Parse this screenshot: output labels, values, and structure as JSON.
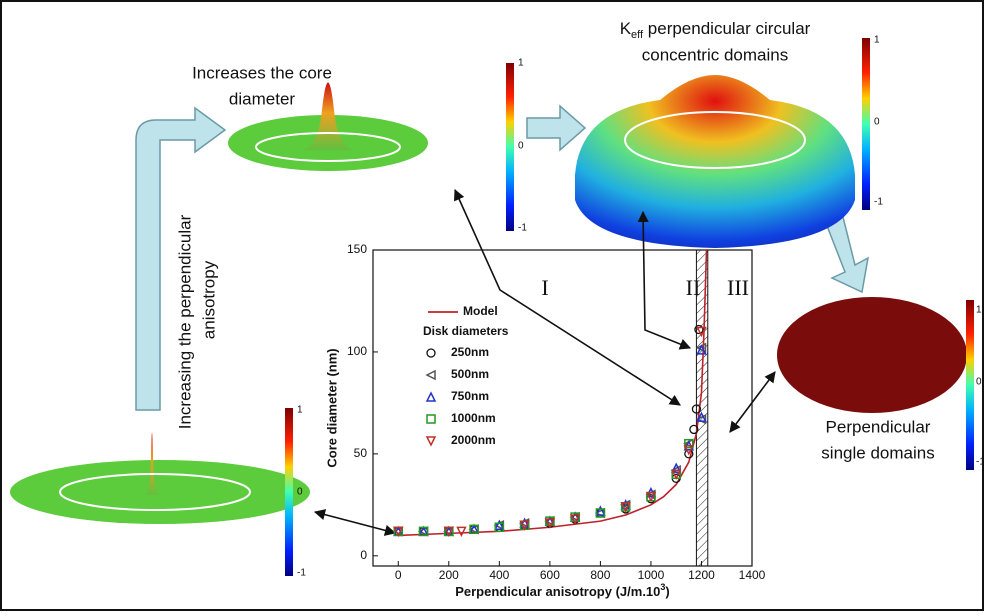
{
  "chart_data": {
    "type": "scatter",
    "xlabel": "Perpendicular anisotropy (J/m.10",
    "xlabel_sup": "3",
    "xlabel_end": ")",
    "ylabel": "Core diameter (nm)",
    "xlim": [
      -100,
      1400
    ],
    "ylim": [
      -5,
      150
    ],
    "xticks": [
      0,
      200,
      400,
      600,
      800,
      1000,
      1200,
      1400
    ],
    "yticks": [
      0,
      50,
      100,
      150
    ],
    "legend_title": "Disk diameters",
    "band": [
      1180,
      1225
    ],
    "regions": [
      "I",
      "II",
      "III"
    ],
    "series": [
      {
        "name": "Model",
        "color": "#c0202a",
        "style": "line",
        "x": [
          0,
          200,
          400,
          600,
          800,
          900,
          1000,
          1050,
          1100,
          1150,
          1180,
          1200,
          1210,
          1220
        ],
        "values": [
          10,
          11,
          12,
          14,
          17,
          20,
          25,
          29,
          35,
          46,
          60,
          80,
          110,
          150
        ]
      },
      {
        "name": "250nm",
        "color": "#111111",
        "marker": "circle",
        "x": [
          0,
          100,
          200,
          300,
          400,
          500,
          600,
          700,
          800,
          900,
          1000,
          1100,
          1150,
          1170,
          1180,
          1190
        ],
        "values": [
          12,
          12,
          12,
          13,
          14,
          15,
          16,
          18,
          21,
          23,
          28,
          38,
          50,
          62,
          72,
          111
        ]
      },
      {
        "name": "500nm",
        "color": "#555555",
        "marker": "tri-left",
        "x": [
          0,
          100,
          200,
          300,
          400,
          500,
          600,
          700,
          800,
          900,
          1000,
          1100,
          1150,
          1200,
          1200
        ],
        "values": [
          12,
          12,
          12,
          13,
          15,
          16,
          17,
          19,
          21,
          25,
          30,
          42,
          55,
          67,
          102
        ]
      },
      {
        "name": "750nm",
        "color": "#2233cc",
        "marker": "tri-up",
        "x": [
          0,
          100,
          200,
          300,
          400,
          500,
          600,
          700,
          800,
          900,
          1000,
          1100,
          1150,
          1200,
          1200
        ],
        "values": [
          12,
          12,
          12,
          13,
          15,
          16,
          17,
          19,
          22,
          25,
          31,
          43,
          54,
          68,
          101
        ]
      },
      {
        "name": "1000nm",
        "color": "#229922",
        "marker": "square",
        "x": [
          0,
          100,
          200,
          300,
          400,
          500,
          600,
          700,
          800,
          900,
          1000,
          1100,
          1150
        ],
        "values": [
          12,
          12,
          12,
          13,
          14,
          15,
          17,
          19,
          21,
          24,
          29,
          40,
          55
        ]
      },
      {
        "name": "2000nm",
        "color": "#c0302a",
        "marker": "tri-down",
        "x": [
          0,
          200,
          250,
          500,
          600,
          700,
          900,
          1000,
          1100,
          1150,
          1200
        ],
        "values": [
          12,
          12,
          12,
          15,
          16,
          18,
          24,
          29,
          40,
          52,
          110
        ]
      }
    ]
  },
  "annotations": {
    "core": [
      "Increases the core",
      "diameter"
    ],
    "keff": {
      "k": "K",
      "sub": "eff",
      "rest": " perpendicular circular",
      "line2": "concentric domains"
    },
    "single": [
      "Perpendicular",
      "single domains"
    ],
    "increasing": [
      "Increasing the perpendicular",
      "anisotropy"
    ],
    "colorbar_ticks": [
      1,
      0,
      -1
    ]
  }
}
